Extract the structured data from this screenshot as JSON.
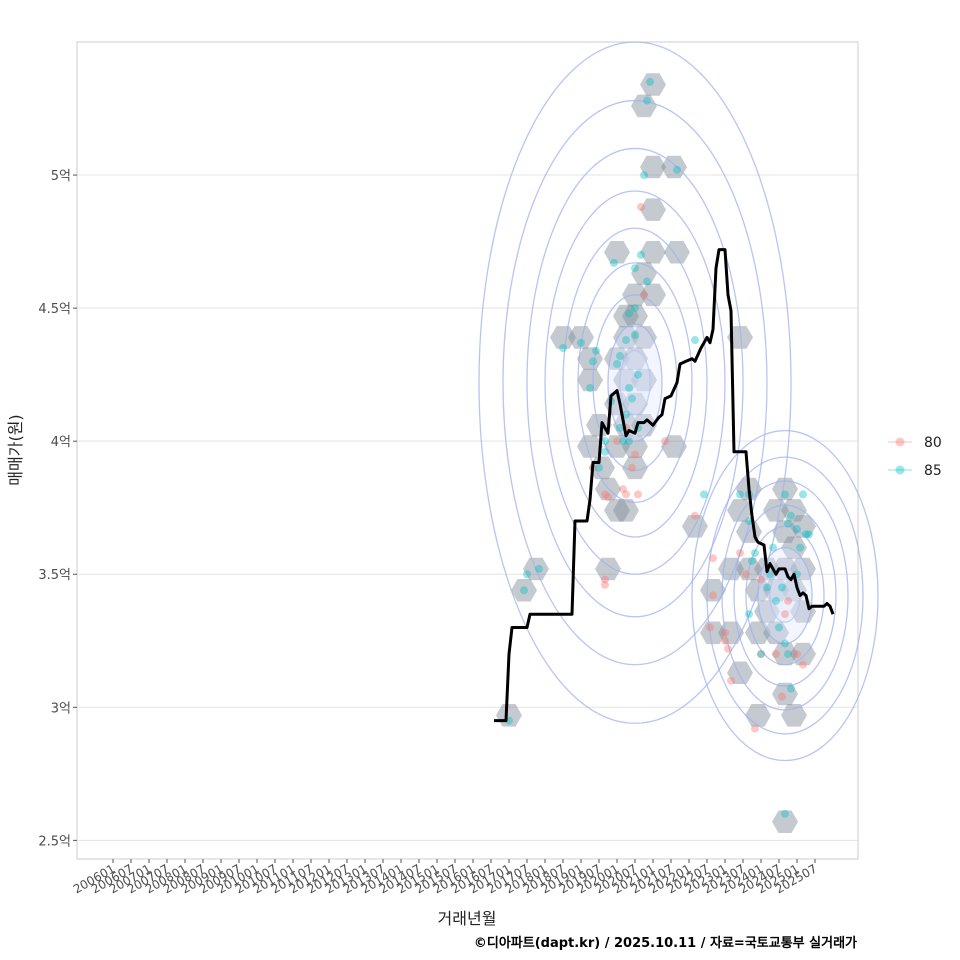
{
  "chart_data": {
    "type": "scatter",
    "xlabel": "거래년월",
    "ylabel": "매매가(원)",
    "caption": "©디아파트(dapt.kr) / 2025.10.11 / 자료=국토교통부 실거래가",
    "x_tick_labels": [
      "200601",
      "200607",
      "200701",
      "200707",
      "200801",
      "200807",
      "200901",
      "200907",
      "201001",
      "201007",
      "201101",
      "201107",
      "201201",
      "201207",
      "201301",
      "201307",
      "201401",
      "201407",
      "201501",
      "201507",
      "201601",
      "201607",
      "201701",
      "201707",
      "201801",
      "201807",
      "201901",
      "201907",
      "202001",
      "202007",
      "202101",
      "202107",
      "202201",
      "202207",
      "202301",
      "202307",
      "202401",
      "202407",
      "202501",
      "202507"
    ],
    "x_range": [
      "2006-01",
      "2025-12"
    ],
    "y_ticks": [
      {
        "value": 2.5,
        "label": "2.5억"
      },
      {
        "value": 3.0,
        "label": "3억"
      },
      {
        "value": 3.5,
        "label": "3.5억"
      },
      {
        "value": 4.0,
        "label": "4억"
      },
      {
        "value": 4.5,
        "label": "4.5억"
      },
      {
        "value": 5.0,
        "label": "5억"
      }
    ],
    "ylim": [
      2.43,
      5.5
    ],
    "y_unit": "억",
    "legend": {
      "position": "right",
      "entries": [
        {
          "name": "80",
          "color": "#f8766d"
        },
        {
          "name": "85",
          "color": "#00bfc4"
        }
      ]
    },
    "series": [
      {
        "name": "80",
        "color": "#f8766d",
        "points": [
          {
            "t": "2019-09",
            "v": 3.8
          },
          {
            "t": "2019-10",
            "v": 3.79
          },
          {
            "t": "2019-05",
            "v": 3.9
          },
          {
            "t": "2019-09",
            "v": 3.48
          },
          {
            "t": "2019-09",
            "v": 3.46
          },
          {
            "t": "2020-01",
            "v": 4.0
          },
          {
            "t": "2020-03",
            "v": 3.82
          },
          {
            "t": "2020-04",
            "v": 3.8
          },
          {
            "t": "2020-06",
            "v": 3.9
          },
          {
            "t": "2020-07",
            "v": 3.95
          },
          {
            "t": "2020-04",
            "v": 4.05
          },
          {
            "t": "2020-08",
            "v": 3.8
          },
          {
            "t": "2020-09",
            "v": 4.88
          },
          {
            "t": "2020-10",
            "v": 4.55
          },
          {
            "t": "2021-05",
            "v": 4.0
          },
          {
            "t": "2022-03",
            "v": 3.72
          },
          {
            "t": "2022-09",
            "v": 3.56
          },
          {
            "t": "2022-09",
            "v": 3.42
          },
          {
            "t": "2022-08",
            "v": 3.3
          },
          {
            "t": "2023-01",
            "v": 3.28
          },
          {
            "t": "2023-02",
            "v": 3.22
          },
          {
            "t": "2023-03",
            "v": 3.1
          },
          {
            "t": "2023-01",
            "v": 3.25
          },
          {
            "t": "2023-08",
            "v": 3.5
          },
          {
            "t": "2024-01",
            "v": 3.48
          },
          {
            "t": "2024-01",
            "v": 3.2
          },
          {
            "t": "2024-06",
            "v": 3.2
          },
          {
            "t": "2024-09",
            "v": 3.35
          },
          {
            "t": "2023-11",
            "v": 2.92
          },
          {
            "t": "2024-08",
            "v": 3.04
          },
          {
            "t": "2025-01",
            "v": 3.2
          },
          {
            "t": "2025-03",
            "v": 3.16
          },
          {
            "t": "2024-10",
            "v": 3.4
          },
          {
            "t": "2023-06",
            "v": 3.58
          }
        ]
      },
      {
        "name": "85",
        "color": "#00bfc4",
        "points": [
          {
            "t": "2017-01",
            "v": 2.95
          },
          {
            "t": "2017-06",
            "v": 3.44
          },
          {
            "t": "2017-07",
            "v": 3.5
          },
          {
            "t": "2017-11",
            "v": 3.52
          },
          {
            "t": "2018-07",
            "v": 4.35
          },
          {
            "t": "2019-01",
            "v": 4.37
          },
          {
            "t": "2019-04",
            "v": 4.2
          },
          {
            "t": "2019-05",
            "v": 4.3
          },
          {
            "t": "2019-06",
            "v": 4.34
          },
          {
            "t": "2019-07",
            "v": 3.9
          },
          {
            "t": "2019-09",
            "v": 4.0
          },
          {
            "t": "2019-09",
            "v": 3.96
          },
          {
            "t": "2019-11",
            "v": 4.15
          },
          {
            "t": "2019-12",
            "v": 4.67
          },
          {
            "t": "2020-01",
            "v": 4.29
          },
          {
            "t": "2020-02",
            "v": 4.32
          },
          {
            "t": "2020-02",
            "v": 4.05
          },
          {
            "t": "2020-03",
            "v": 4.0
          },
          {
            "t": "2020-04",
            "v": 4.38
          },
          {
            "t": "2020-04",
            "v": 4.1
          },
          {
            "t": "2020-05",
            "v": 4.48
          },
          {
            "t": "2020-05",
            "v": 4.2
          },
          {
            "t": "2020-06",
            "v": 4.16
          },
          {
            "t": "2020-07",
            "v": 4.65
          },
          {
            "t": "2020-07",
            "v": 4.5
          },
          {
            "t": "2020-07",
            "v": 4.4
          },
          {
            "t": "2020-08",
            "v": 4.25
          },
          {
            "t": "2020-08",
            "v": 4.05
          },
          {
            "t": "2020-09",
            "v": 4.7
          },
          {
            "t": "2020-10",
            "v": 5.0
          },
          {
            "t": "2020-11",
            "v": 5.28
          },
          {
            "t": "2020-12",
            "v": 5.35
          },
          {
            "t": "2021-09",
            "v": 5.02
          },
          {
            "t": "2020-11",
            "v": 4.6
          },
          {
            "t": "2020-05",
            "v": 4.0
          },
          {
            "t": "2022-03",
            "v": 4.38
          },
          {
            "t": "2022-06",
            "v": 3.8
          },
          {
            "t": "2023-06",
            "v": 3.8
          },
          {
            "t": "2023-09",
            "v": 3.8
          },
          {
            "t": "2023-09",
            "v": 3.7
          },
          {
            "t": "2023-10",
            "v": 3.55
          },
          {
            "t": "2023-11",
            "v": 3.58
          },
          {
            "t": "2024-03",
            "v": 3.45
          },
          {
            "t": "2024-04",
            "v": 3.5
          },
          {
            "t": "2024-05",
            "v": 3.6
          },
          {
            "t": "2024-06",
            "v": 3.4
          },
          {
            "t": "2024-07",
            "v": 3.3
          },
          {
            "t": "2024-08",
            "v": 3.45
          },
          {
            "t": "2024-09",
            "v": 3.8
          },
          {
            "t": "2024-10",
            "v": 3.69
          },
          {
            "t": "2024-11",
            "v": 3.72
          },
          {
            "t": "2025-01",
            "v": 3.67
          },
          {
            "t": "2025-02",
            "v": 3.6
          },
          {
            "t": "2025-04",
            "v": 3.65
          },
          {
            "t": "2025-03",
            "v": 3.8
          },
          {
            "t": "2024-10",
            "v": 3.2
          },
          {
            "t": "2024-11",
            "v": 3.07
          },
          {
            "t": "2024-09",
            "v": 2.6
          },
          {
            "t": "2025-01",
            "v": 3.5
          },
          {
            "t": "2024-09",
            "v": 3.24
          },
          {
            "t": "2024-01",
            "v": 3.2
          },
          {
            "t": "2025-05",
            "v": 3.65
          },
          {
            "t": "2023-09",
            "v": 3.35
          }
        ]
      }
    ],
    "trend_line": {
      "color": "#000000",
      "points": [
        {
          "t": "2016-08",
          "v": 2.95
        },
        {
          "t": "2016-12",
          "v": 2.95
        },
        {
          "t": "2017-01",
          "v": 3.2
        },
        {
          "t": "2017-02",
          "v": 3.3
        },
        {
          "t": "2017-07",
          "v": 3.3
        },
        {
          "t": "2017-08",
          "v": 3.35
        },
        {
          "t": "2018-10",
          "v": 3.35
        },
        {
          "t": "2018-11",
          "v": 3.7
        },
        {
          "t": "2019-03",
          "v": 3.7
        },
        {
          "t": "2019-04",
          "v": 3.78
        },
        {
          "t": "2019-05",
          "v": 3.92
        },
        {
          "t": "2019-07",
          "v": 3.92
        },
        {
          "t": "2019-08",
          "v": 4.07
        },
        {
          "t": "2019-10",
          "v": 4.03
        },
        {
          "t": "2019-11",
          "v": 4.17
        },
        {
          "t": "2020-01",
          "v": 4.19
        },
        {
          "t": "2020-02",
          "v": 4.14
        },
        {
          "t": "2020-04",
          "v": 4.02
        },
        {
          "t": "2020-05",
          "v": 4.04
        },
        {
          "t": "2020-07",
          "v": 4.03
        },
        {
          "t": "2020-08",
          "v": 4.07
        },
        {
          "t": "2020-10",
          "v": 4.07
        },
        {
          "t": "2020-11",
          "v": 4.08
        },
        {
          "t": "2021-01",
          "v": 4.06
        },
        {
          "t": "2021-03",
          "v": 4.09
        },
        {
          "t": "2021-04",
          "v": 4.1
        },
        {
          "t": "2021-05",
          "v": 4.16
        },
        {
          "t": "2021-07",
          "v": 4.17
        },
        {
          "t": "2021-09",
          "v": 4.22
        },
        {
          "t": "2021-10",
          "v": 4.29
        },
        {
          "t": "2021-12",
          "v": 4.3
        },
        {
          "t": "2022-02",
          "v": 4.31
        },
        {
          "t": "2022-03",
          "v": 4.3
        },
        {
          "t": "2022-05",
          "v": 4.35
        },
        {
          "t": "2022-06",
          "v": 4.37
        },
        {
          "t": "2022-07",
          "v": 4.39
        },
        {
          "t": "2022-08",
          "v": 4.37
        },
        {
          "t": "2022-09",
          "v": 4.42
        },
        {
          "t": "2022-10",
          "v": 4.65
        },
        {
          "t": "2022-11",
          "v": 4.72
        },
        {
          "t": "2023-01",
          "v": 4.72
        },
        {
          "t": "2023-02",
          "v": 4.55
        },
        {
          "t": "2023-03",
          "v": 4.49
        },
        {
          "t": "2023-04",
          "v": 3.96
        },
        {
          "t": "2023-08",
          "v": 3.96
        },
        {
          "t": "2023-09",
          "v": 3.82
        },
        {
          "t": "2023-10",
          "v": 3.72
        },
        {
          "t": "2023-11",
          "v": 3.64
        },
        {
          "t": "2023-12",
          "v": 3.62
        },
        {
          "t": "2024-02",
          "v": 3.61
        },
        {
          "t": "2024-03",
          "v": 3.51
        },
        {
          "t": "2024-04",
          "v": 3.54
        },
        {
          "t": "2024-06",
          "v": 3.5
        },
        {
          "t": "2024-07",
          "v": 3.52
        },
        {
          "t": "2024-09",
          "v": 3.52
        },
        {
          "t": "2024-10",
          "v": 3.49
        },
        {
          "t": "2024-11",
          "v": 3.48
        },
        {
          "t": "2024-12",
          "v": 3.5
        },
        {
          "t": "2025-01",
          "v": 3.45
        },
        {
          "t": "2025-02",
          "v": 3.42
        },
        {
          "t": "2025-03",
          "v": 3.43
        },
        {
          "t": "2025-04",
          "v": 3.42
        },
        {
          "t": "2025-05",
          "v": 3.37
        },
        {
          "t": "2025-06",
          "v": 3.38
        },
        {
          "t": "2025-08",
          "v": 3.38
        },
        {
          "t": "2025-10",
          "v": 3.38
        },
        {
          "t": "2025-11",
          "v": 3.39
        },
        {
          "t": "2025-12",
          "v": 3.38
        },
        {
          "t": "2026-01",
          "v": 3.35
        }
      ]
    },
    "density_hexbins": [
      {
        "t": "2017-01",
        "v": 2.97
      },
      {
        "t": "2017-06",
        "v": 3.44
      },
      {
        "t": "2017-10",
        "v": 3.52
      },
      {
        "t": "2018-07",
        "v": 4.39
      },
      {
        "t": "2019-01",
        "v": 4.39
      },
      {
        "t": "2019-04",
        "v": 4.31
      },
      {
        "t": "2019-04",
        "v": 4.23
      },
      {
        "t": "2019-07",
        "v": 4.06
      },
      {
        "t": "2019-04",
        "v": 3.98
      },
      {
        "t": "2019-08",
        "v": 3.9
      },
      {
        "t": "2019-10",
        "v": 3.82
      },
      {
        "t": "2020-01",
        "v": 3.74
      },
      {
        "t": "2020-04",
        "v": 3.74
      },
      {
        "t": "2019-10",
        "v": 3.52
      },
      {
        "t": "2020-01",
        "v": 4.14
      },
      {
        "t": "2020-01",
        "v": 3.98
      },
      {
        "t": "2020-04",
        "v": 4.23
      },
      {
        "t": "2020-04",
        "v": 4.06
      },
      {
        "t": "2020-07",
        "v": 4.31
      },
      {
        "t": "2020-07",
        "v": 4.14
      },
      {
        "t": "2020-07",
        "v": 3.98
      },
      {
        "t": "2020-10",
        "v": 4.23
      },
      {
        "t": "2020-10",
        "v": 4.06
      },
      {
        "t": "2020-04",
        "v": 4.47
      },
      {
        "t": "2020-07",
        "v": 4.47
      },
      {
        "t": "2020-10",
        "v": 4.39
      },
      {
        "t": "2020-04",
        "v": 4.39
      },
      {
        "t": "2020-01",
        "v": 4.31
      },
      {
        "t": "2020-07",
        "v": 3.9
      },
      {
        "t": "2020-10",
        "v": 4.63
      },
      {
        "t": "2020-07",
        "v": 4.55
      },
      {
        "t": "2021-01",
        "v": 4.55
      },
      {
        "t": "2020-01",
        "v": 4.71
      },
      {
        "t": "2021-01",
        "v": 4.71
      },
      {
        "t": "2021-09",
        "v": 4.71
      },
      {
        "t": "2021-01",
        "v": 4.87
      },
      {
        "t": "2021-01",
        "v": 5.03
      },
      {
        "t": "2021-08",
        "v": 5.03
      },
      {
        "t": "2021-01",
        "v": 5.34
      },
      {
        "t": "2020-10",
        "v": 5.26
      },
      {
        "t": "2021-08",
        "v": 3.98
      },
      {
        "t": "2022-03",
        "v": 3.68
      },
      {
        "t": "2023-06",
        "v": 4.39
      },
      {
        "t": "2022-09",
        "v": 3.44
      },
      {
        "t": "2022-09",
        "v": 3.28
      },
      {
        "t": "2023-03",
        "v": 3.28
      },
      {
        "t": "2023-06",
        "v": 3.13
      },
      {
        "t": "2023-03",
        "v": 3.52
      },
      {
        "t": "2023-06",
        "v": 3.74
      },
      {
        "t": "2023-09",
        "v": 3.82
      },
      {
        "t": "2023-09",
        "v": 3.66
      },
      {
        "t": "2023-09",
        "v": 3.52
      },
      {
        "t": "2023-12",
        "v": 3.44
      },
      {
        "t": "2023-12",
        "v": 3.28
      },
      {
        "t": "2024-03",
        "v": 3.52
      },
      {
        "t": "2024-03",
        "v": 3.36
      },
      {
        "t": "2024-06",
        "v": 3.74
      },
      {
        "t": "2024-06",
        "v": 3.44
      },
      {
        "t": "2024-06",
        "v": 3.28
      },
      {
        "t": "2024-09",
        "v": 3.82
      },
      {
        "t": "2024-09",
        "v": 3.66
      },
      {
        "t": "2024-09",
        "v": 3.52
      },
      {
        "t": "2024-09",
        "v": 3.2
      },
      {
        "t": "2024-12",
        "v": 3.74
      },
      {
        "t": "2024-12",
        "v": 3.6
      },
      {
        "t": "2024-12",
        "v": 3.44
      },
      {
        "t": "2024-09",
        "v": 3.05
      },
      {
        "t": "2025-03",
        "v": 3.68
      },
      {
        "t": "2025-03",
        "v": 3.52
      },
      {
        "t": "2025-03",
        "v": 3.2
      },
      {
        "t": "2023-12",
        "v": 2.97
      },
      {
        "t": "2024-12",
        "v": 2.97
      },
      {
        "t": "2024-09",
        "v": 2.57
      },
      {
        "t": "2025-03",
        "v": 3.36
      }
    ],
    "density_contours": [
      {
        "cx": "2020-07",
        "cy": 4.22,
        "rx_months": [
          5,
          9,
          14,
          19,
          24,
          30,
          36,
          44,
          52
        ],
        "ry": [
          0.12,
          0.22,
          0.33,
          0.45,
          0.58,
          0.72,
          0.88,
          1.06,
          1.28
        ]
      },
      {
        "cx": "2024-09",
        "cy": 3.42,
        "rx_months": [
          5,
          9,
          13,
          17,
          21,
          26,
          31
        ],
        "ry": [
          0.1,
          0.18,
          0.26,
          0.34,
          0.43,
          0.52,
          0.62
        ]
      }
    ]
  }
}
